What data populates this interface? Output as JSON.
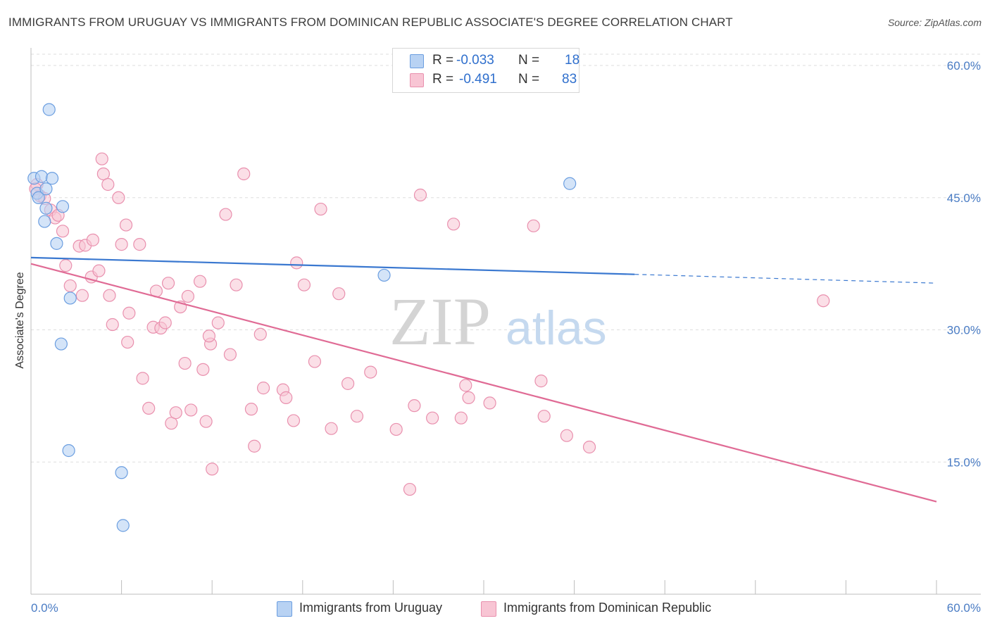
{
  "title": "IMMIGRANTS FROM URUGUAY VS IMMIGRANTS FROM DOMINICAN REPUBLIC ASSOCIATE'S DEGREE CORRELATION CHART",
  "source": "Source: ZipAtlas.com",
  "watermark": {
    "zip": "ZIP",
    "atlas": "atlas"
  },
  "legend": {
    "uruguay": {
      "r_label": "R =",
      "r_value": "-0.033",
      "n_label": "N =",
      "n_value": "18"
    },
    "dominican": {
      "r_label": "R =",
      "r_value": "-0.491",
      "n_label": "N =",
      "n_value": "83"
    }
  },
  "colors": {
    "uruguay_fill": "#b8d2f3",
    "uruguay_stroke": "#6b9ee0",
    "uruguay_line": "#3a78d0",
    "dominican_fill": "#f8c5d4",
    "dominican_stroke": "#e990ae",
    "dominican_line": "#e06b95",
    "tick_label": "#4a7cc4",
    "grid": "#dedede"
  },
  "chart_data": {
    "type": "scatter",
    "ylabel": "Associate's Degree",
    "xlim": [
      0,
      60
    ],
    "ylim": [
      0,
      62
    ],
    "x_tick_labels": {
      "min": "0.0%",
      "max": "60.0%"
    },
    "y_ticks": [
      {
        "value": 15,
        "label": "15.0%"
      },
      {
        "value": 30,
        "label": "30.0%"
      },
      {
        "value": 45,
        "label": "45.0%"
      },
      {
        "value": 60,
        "label": "60.0%"
      }
    ],
    "grid": true,
    "legend_placement": "top-center and bottom",
    "series": [
      {
        "name": "Immigrants from Uruguay",
        "trend": {
          "x0": 0,
          "y0": 38.2,
          "x1": 40,
          "y1": 36.3,
          "dashed_to_x": 60,
          "dashed_to_y": 35.3
        },
        "points": [
          [
            0.2,
            47.2
          ],
          [
            0.4,
            45.5
          ],
          [
            0.7,
            47.4
          ],
          [
            0.5,
            45.0
          ],
          [
            1.4,
            47.2
          ],
          [
            1.2,
            55.0
          ],
          [
            1.0,
            43.8
          ],
          [
            2.1,
            44.0
          ],
          [
            0.9,
            42.3
          ],
          [
            1.7,
            39.8
          ],
          [
            2.6,
            33.6
          ],
          [
            2.0,
            28.4
          ],
          [
            2.5,
            16.3
          ],
          [
            6.0,
            13.8
          ],
          [
            6.1,
            7.8
          ],
          [
            23.4,
            36.2
          ],
          [
            35.7,
            46.6
          ],
          [
            1.0,
            46.0
          ]
        ]
      },
      {
        "name": "Immigrants from Dominican Republic",
        "trend": {
          "x0": 0,
          "y0": 37.5,
          "x1": 60,
          "y1": 10.5
        },
        "points": [
          [
            0.4,
            46.5
          ],
          [
            0.6,
            45.2
          ],
          [
            0.9,
            44.9
          ],
          [
            1.3,
            43.6
          ],
          [
            1.6,
            42.7
          ],
          [
            1.8,
            43.0
          ],
          [
            2.1,
            41.2
          ],
          [
            2.3,
            37.3
          ],
          [
            2.6,
            35.0
          ],
          [
            3.2,
            39.5
          ],
          [
            3.4,
            33.9
          ],
          [
            3.6,
            39.6
          ],
          [
            4.0,
            36.0
          ],
          [
            4.1,
            40.2
          ],
          [
            4.5,
            36.7
          ],
          [
            4.7,
            49.4
          ],
          [
            4.8,
            47.7
          ],
          [
            5.1,
            46.5
          ],
          [
            5.2,
            33.9
          ],
          [
            5.4,
            30.6
          ],
          [
            5.8,
            45.0
          ],
          [
            6.0,
            39.7
          ],
          [
            6.3,
            41.9
          ],
          [
            6.4,
            28.6
          ],
          [
            6.5,
            31.9
          ],
          [
            7.2,
            39.7
          ],
          [
            7.4,
            24.5
          ],
          [
            7.8,
            21.1
          ],
          [
            8.1,
            30.3
          ],
          [
            8.3,
            34.4
          ],
          [
            8.6,
            30.2
          ],
          [
            8.9,
            30.8
          ],
          [
            9.1,
            35.3
          ],
          [
            9.3,
            19.4
          ],
          [
            9.6,
            20.6
          ],
          [
            9.9,
            32.6
          ],
          [
            10.2,
            26.2
          ],
          [
            10.4,
            33.8
          ],
          [
            10.6,
            20.9
          ],
          [
            11.2,
            35.5
          ],
          [
            11.4,
            25.5
          ],
          [
            11.6,
            19.6
          ],
          [
            11.9,
            28.4
          ],
          [
            11.8,
            29.3
          ],
          [
            12.4,
            30.8
          ],
          [
            12.0,
            14.2
          ],
          [
            12.9,
            43.1
          ],
          [
            13.2,
            27.2
          ],
          [
            13.6,
            35.1
          ],
          [
            14.1,
            47.7
          ],
          [
            14.6,
            21.0
          ],
          [
            14.8,
            16.8
          ],
          [
            15.2,
            29.5
          ],
          [
            15.4,
            23.4
          ],
          [
            16.7,
            23.2
          ],
          [
            16.9,
            22.3
          ],
          [
            17.4,
            19.7
          ],
          [
            17.6,
            37.6
          ],
          [
            18.1,
            35.1
          ],
          [
            18.8,
            26.4
          ],
          [
            19.2,
            43.7
          ],
          [
            19.9,
            18.8
          ],
          [
            20.4,
            34.1
          ],
          [
            21.0,
            23.9
          ],
          [
            21.6,
            20.2
          ],
          [
            22.5,
            25.2
          ],
          [
            24.2,
            18.7
          ],
          [
            25.1,
            11.9
          ],
          [
            25.4,
            21.4
          ],
          [
            25.8,
            45.3
          ],
          [
            26.6,
            20.0
          ],
          [
            28.0,
            42.0
          ],
          [
            28.5,
            20.0
          ],
          [
            28.8,
            23.7
          ],
          [
            29.0,
            22.3
          ],
          [
            30.4,
            21.7
          ],
          [
            33.3,
            41.8
          ],
          [
            33.8,
            24.2
          ],
          [
            34.0,
            20.2
          ],
          [
            35.5,
            18.0
          ],
          [
            37.0,
            16.7
          ],
          [
            52.5,
            33.3
          ],
          [
            0.3,
            46.0
          ]
        ]
      }
    ]
  },
  "bottom_legend": {
    "uruguay": "Immigrants from Uruguay",
    "dominican": "Immigrants from Dominican Republic"
  }
}
